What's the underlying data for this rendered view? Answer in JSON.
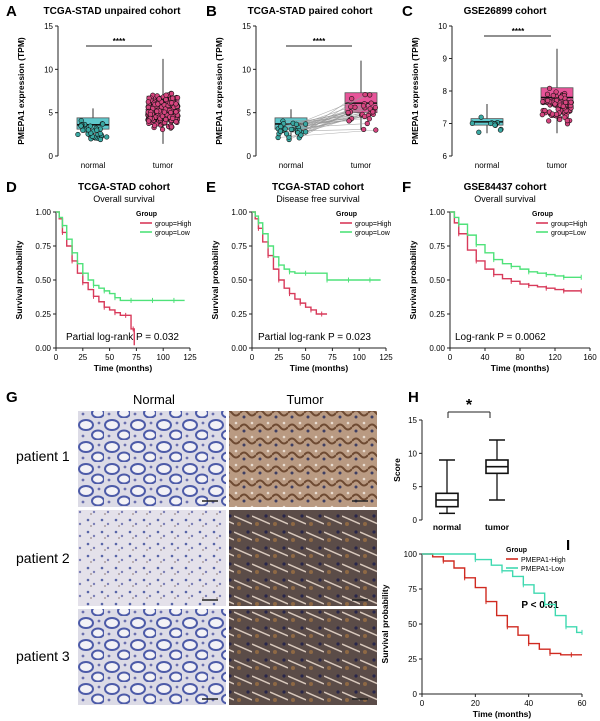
{
  "colors": {
    "normal_box": "#5ec8cc",
    "tumor_box": "#e8559a",
    "high": "#d83a5a",
    "low": "#4fe27a",
    "i_high": "#d02a20",
    "i_low": "#3fd9b0"
  },
  "panels": {
    "A": {
      "letter": "A",
      "title": "TCGA-STAD unpaired cohort",
      "sig": "****"
    },
    "B": {
      "letter": "B",
      "title": "TCGA-STAD paired cohort",
      "sig": "****"
    },
    "C": {
      "letter": "C",
      "title": "GSE26899 cohort",
      "sig": "****"
    },
    "D": {
      "letter": "D",
      "title": "TCGA-STAD cohort",
      "subtitle": "Overall survival",
      "pvalue": "Partial log-rank P = 0.032"
    },
    "E": {
      "letter": "E",
      "title": "TCGA-STAD cohort",
      "subtitle": "Disease free survival",
      "pvalue": "Partial log-rank P = 0.023"
    },
    "F": {
      "letter": "F",
      "title": "GSE84437 cohort",
      "subtitle": "Overall survival",
      "pvalue": "Log-rank P = 0.0062"
    },
    "G": {
      "letter": "G",
      "col_normal": "Normal",
      "col_tumor": "Tumor",
      "rows": [
        "patient 1",
        "patient 2",
        "patient 3"
      ]
    },
    "H": {
      "letter": "H",
      "sig": "*"
    },
    "I": {
      "letter": "I",
      "pvalue": "P < 0.01"
    }
  },
  "chart_data": [
    {
      "id": "A",
      "type": "box",
      "title": "TCGA-STAD unpaired cohort",
      "ylabel": "PMEPA1 expression (TPM)",
      "xlabel": "",
      "categories": [
        "normal",
        "tumor"
      ],
      "ylim": [
        0,
        15
      ],
      "yticks": [
        "0",
        "5",
        "10",
        "15"
      ],
      "boxes": [
        {
          "name": "normal",
          "min": 1.9,
          "q1": 3.1,
          "median": 3.6,
          "q3": 4.4,
          "max": 5.5
        },
        {
          "name": "tumor",
          "min": 1.4,
          "q1": 5.1,
          "median": 6.0,
          "q3": 6.9,
          "max": 11.2
        }
      ]
    },
    {
      "id": "B",
      "type": "box",
      "title": "TCGA-STAD paired cohort",
      "ylabel": "PMEPA1 expression (TPM)",
      "xlabel": "",
      "categories": [
        "normal",
        "tumor"
      ],
      "ylim": [
        0,
        15
      ],
      "yticks": [
        "0",
        "5",
        "10",
        "15"
      ],
      "boxes": [
        {
          "name": "normal",
          "min": 1.9,
          "q1": 3.1,
          "median": 3.7,
          "q3": 4.4,
          "max": 5.4
        },
        {
          "name": "tumor",
          "min": 3.0,
          "q1": 5.0,
          "median": 6.1,
          "q3": 7.3,
          "max": 11.0
        }
      ]
    },
    {
      "id": "C",
      "type": "box",
      "title": "GSE26899 cohort",
      "ylabel": "PMEPA1 expression (TPM)",
      "xlabel": "",
      "categories": [
        "normal",
        "tumor"
      ],
      "ylim": [
        6,
        10
      ],
      "yticks": [
        "6",
        "7",
        "8",
        "9",
        "10"
      ],
      "boxes": [
        {
          "name": "normal",
          "min": 6.7,
          "q1": 6.95,
          "median": 7.05,
          "q3": 7.15,
          "max": 7.6
        },
        {
          "name": "tumor",
          "min": 6.7,
          "q1": 7.6,
          "median": 7.8,
          "q3": 8.1,
          "max": 9.3
        }
      ]
    },
    {
      "id": "D",
      "type": "line",
      "title": "TCGA-STAD cohort",
      "subtitle": "Overall survival",
      "xlabel": "Time (months)",
      "ylabel": "Survival probability",
      "xlim": [
        0,
        125
      ],
      "ylim": [
        0,
        1
      ],
      "xticks": [
        "0",
        "25",
        "50",
        "75",
        "100",
        "125"
      ],
      "yticks": [
        "0.00",
        "0.25",
        "0.50",
        "0.75",
        "1.00"
      ],
      "legend_title": "Group",
      "series": [
        {
          "name": "group=High",
          "x": [
            0,
            3,
            6,
            10,
            15,
            20,
            25,
            30,
            35,
            40,
            45,
            50,
            55,
            60,
            65,
            70,
            72,
            73
          ],
          "y": [
            1.0,
            0.95,
            0.85,
            0.75,
            0.64,
            0.55,
            0.48,
            0.43,
            0.38,
            0.34,
            0.3,
            0.28,
            0.26,
            0.24,
            0.24,
            0.14,
            0.14,
            0.02
          ]
        },
        {
          "name": "group=Low",
          "x": [
            0,
            3,
            6,
            10,
            15,
            20,
            25,
            30,
            35,
            40,
            45,
            50,
            55,
            60,
            70,
            80,
            90,
            100,
            110,
            120
          ],
          "y": [
            1.0,
            0.96,
            0.9,
            0.8,
            0.7,
            0.62,
            0.55,
            0.5,
            0.46,
            0.44,
            0.42,
            0.4,
            0.37,
            0.35,
            0.35,
            0.35,
            0.35,
            0.35,
            0.35,
            0.35
          ]
        }
      ]
    },
    {
      "id": "E",
      "type": "line",
      "title": "TCGA-STAD cohort",
      "subtitle": "Disease free survival",
      "xlabel": "Time (months)",
      "ylabel": "Survival probability",
      "xlim": [
        0,
        125
      ],
      "ylim": [
        0,
        1
      ],
      "xticks": [
        "0",
        "25",
        "50",
        "75",
        "100",
        "125"
      ],
      "yticks": [
        "0.00",
        "0.25",
        "0.50",
        "0.75",
        "1.00"
      ],
      "legend_title": "Group",
      "series": [
        {
          "name": "group=High",
          "x": [
            0,
            3,
            6,
            10,
            15,
            20,
            25,
            30,
            35,
            40,
            45,
            50,
            55,
            60,
            65,
            70
          ],
          "y": [
            1.0,
            0.95,
            0.88,
            0.78,
            0.68,
            0.58,
            0.5,
            0.44,
            0.4,
            0.36,
            0.33,
            0.3,
            0.28,
            0.25,
            0.25,
            0.25
          ]
        },
        {
          "name": "group=Low",
          "x": [
            0,
            3,
            6,
            10,
            15,
            20,
            25,
            30,
            35,
            40,
            50,
            60,
            70,
            80,
            90,
            100,
            110,
            120
          ],
          "y": [
            1.0,
            0.97,
            0.92,
            0.84,
            0.75,
            0.67,
            0.61,
            0.58,
            0.56,
            0.55,
            0.55,
            0.55,
            0.5,
            0.5,
            0.5,
            0.5,
            0.5,
            0.5
          ]
        }
      ]
    },
    {
      "id": "F",
      "type": "line",
      "title": "GSE84437 cohort",
      "subtitle": "Overall survival",
      "xlabel": "Time (months)",
      "ylabel": "Survival probability",
      "xlim": [
        0,
        160
      ],
      "ylim": [
        0,
        1
      ],
      "xticks": [
        "0",
        "40",
        "80",
        "120",
        "160"
      ],
      "yticks": [
        "0.00",
        "0.25",
        "0.50",
        "0.75",
        "1.00"
      ],
      "legend_title": "Group",
      "series": [
        {
          "name": "group=High",
          "x": [
            0,
            5,
            10,
            20,
            30,
            40,
            50,
            60,
            70,
            80,
            90,
            100,
            110,
            120,
            130,
            140,
            150
          ],
          "y": [
            1.0,
            0.92,
            0.84,
            0.72,
            0.64,
            0.58,
            0.54,
            0.51,
            0.49,
            0.47,
            0.46,
            0.45,
            0.44,
            0.43,
            0.42,
            0.42,
            0.42
          ]
        },
        {
          "name": "group=Low",
          "x": [
            0,
            5,
            10,
            20,
            30,
            40,
            50,
            60,
            70,
            80,
            90,
            100,
            110,
            120,
            130,
            140,
            150
          ],
          "y": [
            1.0,
            0.96,
            0.91,
            0.83,
            0.76,
            0.7,
            0.65,
            0.62,
            0.6,
            0.58,
            0.56,
            0.55,
            0.54,
            0.53,
            0.52,
            0.52,
            0.52
          ]
        }
      ]
    },
    {
      "id": "H",
      "type": "box",
      "title": "",
      "ylabel": "Score",
      "xlabel": "",
      "categories": [
        "normal",
        "tumor"
      ],
      "ylim": [
        0,
        15
      ],
      "yticks": [
        "0",
        "5",
        "10",
        "15"
      ],
      "boxes": [
        {
          "name": "normal",
          "min": 1,
          "q1": 2,
          "median": 3,
          "q3": 4,
          "max": 9
        },
        {
          "name": "tumor",
          "min": 3,
          "q1": 7,
          "median": 8,
          "q3": 9,
          "max": 12
        }
      ]
    },
    {
      "id": "I",
      "type": "line",
      "title": "",
      "xlabel": "Time (months)",
      "ylabel": "Survival probability",
      "xlim": [
        0,
        60
      ],
      "ylim": [
        0,
        100
      ],
      "xticks": [
        "0",
        "20",
        "40",
        "60"
      ],
      "yticks": [
        "0",
        "25",
        "50",
        "75",
        "100"
      ],
      "legend_title": "Group",
      "series": [
        {
          "name": "PMEPA1-High",
          "x": [
            0,
            4,
            8,
            12,
            16,
            20,
            24,
            28,
            32,
            36,
            40,
            44,
            48,
            52,
            56,
            60
          ],
          "y": [
            100,
            98,
            95,
            90,
            83,
            76,
            66,
            56,
            48,
            42,
            36,
            32,
            29,
            28,
            28,
            28
          ]
        },
        {
          "name": "PMEPA1-Low",
          "x": [
            0,
            10,
            20,
            26,
            30,
            34,
            38,
            42,
            46,
            50,
            54,
            58,
            60
          ],
          "y": [
            100,
            100,
            96,
            92,
            88,
            84,
            78,
            72,
            64,
            56,
            48,
            44,
            44
          ]
        }
      ]
    }
  ]
}
